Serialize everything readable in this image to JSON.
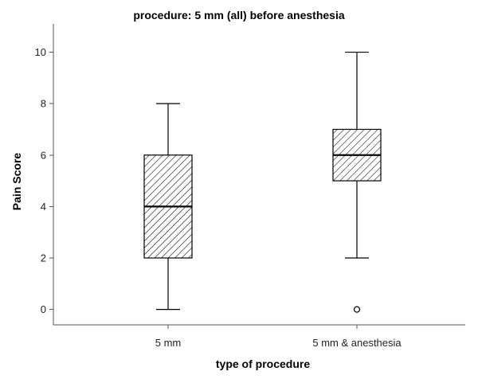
{
  "chart_data": {
    "type": "boxplot",
    "title": "procedure: 5 mm (all) before anesthesia",
    "xlabel": "type of procedure",
    "ylabel": "Pain Score",
    "ylim": [
      -0.6,
      11.1
    ],
    "yticks": [
      0,
      2,
      4,
      6,
      8,
      10
    ],
    "yticklabels": [
      "0",
      "2",
      "4",
      "6",
      "8",
      "10"
    ],
    "categories": [
      "5 mm",
      "5 mm & anesthesia"
    ],
    "boxes": [
      {
        "category": "5 mm",
        "whisker_low": 0,
        "q1": 2,
        "median": 4,
        "q3": 6,
        "whisker_high": 8,
        "outliers": []
      },
      {
        "category": "5 mm & anesthesia",
        "whisker_low": 2,
        "q1": 5,
        "median": 6,
        "q3": 7,
        "whisker_high": 10,
        "outliers": [
          0
        ]
      }
    ],
    "fill_pattern": "diagonal-hatch",
    "grid": false
  },
  "colors": {
    "line": "#000000",
    "axis": "#555555",
    "hatch": "#000000",
    "background": "#ffffff"
  }
}
